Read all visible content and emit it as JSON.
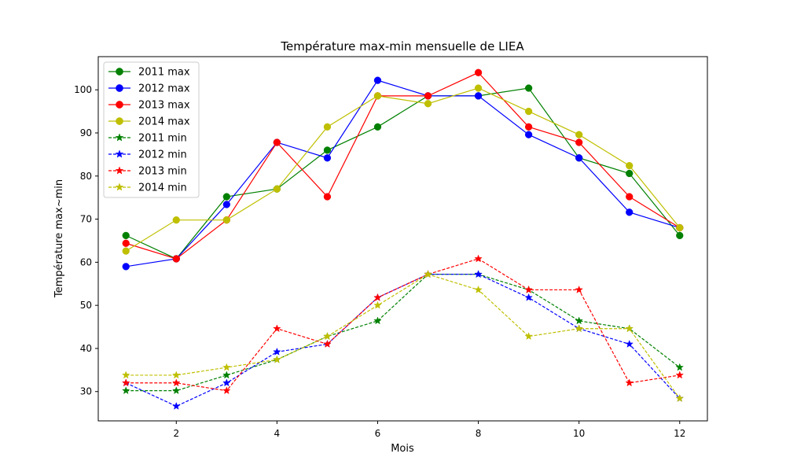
{
  "chart_data": {
    "type": "line",
    "title": "Température max-min mensuelle de LIEA",
    "xlabel": "Mois",
    "ylabel": "Température max~min",
    "x": [
      1,
      2,
      3,
      4,
      5,
      6,
      7,
      8,
      9,
      10,
      11,
      12
    ],
    "xlim": [
      0.45,
      12.55
    ],
    "ylim": [
      23.2,
      107.7
    ],
    "xticks": [
      "2",
      "4",
      "6",
      "8",
      "10",
      "12"
    ],
    "yticks": [
      "30",
      "40",
      "50",
      "60",
      "70",
      "80",
      "90",
      "100"
    ],
    "grid": false,
    "legend_position": "top-left",
    "series": [
      {
        "name": "2011 max",
        "color": "#008000",
        "marker": "circle",
        "linestyle": "solid",
        "values": [
          66.2,
          60.8,
          75.2,
          77.0,
          86.0,
          91.4,
          98.6,
          98.6,
          100.4,
          84.2,
          80.6,
          66.2
        ]
      },
      {
        "name": "2012 max",
        "color": "#0000ff",
        "marker": "circle",
        "linestyle": "solid",
        "values": [
          59.0,
          60.8,
          73.4,
          87.8,
          84.2,
          102.2,
          98.6,
          98.6,
          89.6,
          84.2,
          71.6,
          68.0
        ]
      },
      {
        "name": "2013 max",
        "color": "#ff0000",
        "marker": "circle",
        "linestyle": "solid",
        "values": [
          64.4,
          60.8,
          69.8,
          87.8,
          75.2,
          98.6,
          98.6,
          104.0,
          91.4,
          87.8,
          75.2,
          68.0
        ]
      },
      {
        "name": "2014 max",
        "color": "#bfbf00",
        "marker": "circle",
        "linestyle": "solid",
        "values": [
          62.6,
          69.8,
          69.8,
          77.0,
          91.4,
          98.6,
          96.8,
          100.4,
          95.0,
          89.6,
          82.4,
          68.0
        ]
      },
      {
        "name": "2011 min",
        "color": "#008000",
        "marker": "star",
        "linestyle": "dashed",
        "values": [
          30.2,
          30.2,
          33.8,
          37.4,
          42.8,
          46.4,
          57.2,
          57.2,
          53.6,
          46.4,
          44.6,
          35.6
        ]
      },
      {
        "name": "2012 min",
        "color": "#0000ff",
        "marker": "star",
        "linestyle": "dashed",
        "values": [
          32.0,
          26.6,
          32.0,
          39.2,
          41.0,
          51.8,
          57.2,
          57.2,
          51.8,
          44.6,
          41.0,
          28.4
        ]
      },
      {
        "name": "2013 min",
        "color": "#ff0000",
        "marker": "star",
        "linestyle": "dashed",
        "values": [
          32.0,
          32.0,
          30.2,
          44.6,
          41.0,
          51.8,
          57.2,
          60.8,
          53.6,
          53.6,
          32.0,
          33.8
        ]
      },
      {
        "name": "2014 min",
        "color": "#bfbf00",
        "marker": "star",
        "linestyle": "dashed",
        "values": [
          33.8,
          33.8,
          35.6,
          37.4,
          42.8,
          50.0,
          57.2,
          53.6,
          42.8,
          44.6,
          44.6,
          28.4
        ]
      }
    ]
  }
}
